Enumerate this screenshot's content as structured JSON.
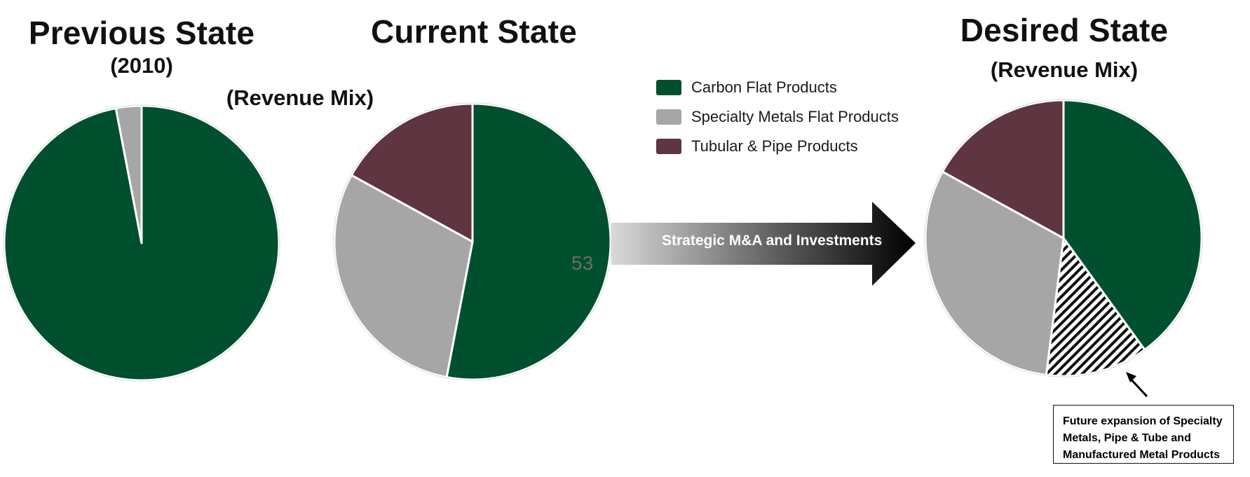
{
  "colors": {
    "carbon_flat": "#00502f",
    "specialty_metals": "#a6a6a6",
    "tubular_pipe": "#5e3541",
    "future": "#ffffff"
  },
  "titles": {
    "previous": "Previous State",
    "previous_sub": "(2010)",
    "current": "Current State",
    "current_sub": "(Revenue Mix)",
    "desired": "Desired State",
    "desired_sub": "(Revenue Mix)"
  },
  "legend": [
    {
      "label": "Carbon Flat Products",
      "color": "#00502f"
    },
    {
      "label": "Specialty Metals Flat Products",
      "color": "#a6a6a6"
    },
    {
      "label": "Tubular & Pipe Products",
      "color": "#5e3541"
    }
  ],
  "arrow": {
    "label": "Strategic M&A and Investments"
  },
  "stray_label": "53",
  "callout": {
    "text": "Future expansion of Specialty Metals, Pipe & Tube and Manufactured Metal Products"
  },
  "chart_data": [
    {
      "type": "pie",
      "title": "Previous State",
      "subtitle": "(2010)",
      "slices": [
        {
          "name": "Carbon Flat Products",
          "value": 97,
          "color": "#00502f"
        },
        {
          "name": "Specialty Metals Flat Products",
          "value": 3,
          "color": "#a6a6a6"
        }
      ]
    },
    {
      "type": "pie",
      "title": "Current State",
      "subtitle": "(Revenue Mix)",
      "slices": [
        {
          "name": "Carbon Flat Products",
          "value": 53,
          "color": "#00502f"
        },
        {
          "name": "Specialty Metals Flat Products",
          "value": 30,
          "color": "#a6a6a6"
        },
        {
          "name": "Tubular & Pipe Products",
          "value": 17,
          "color": "#5e3541"
        }
      ]
    },
    {
      "type": "pie",
      "title": "Desired State",
      "subtitle": "(Revenue Mix)",
      "slices": [
        {
          "name": "Carbon Flat Products",
          "value": 40,
          "color": "#00502f"
        },
        {
          "name": "Future expansion",
          "value": 12,
          "color": "#ffffff",
          "pattern": "hatch"
        },
        {
          "name": "Specialty Metals Flat Products",
          "value": 31,
          "color": "#a6a6a6"
        },
        {
          "name": "Tubular & Pipe Products",
          "value": 17,
          "color": "#5e3541"
        }
      ]
    }
  ]
}
